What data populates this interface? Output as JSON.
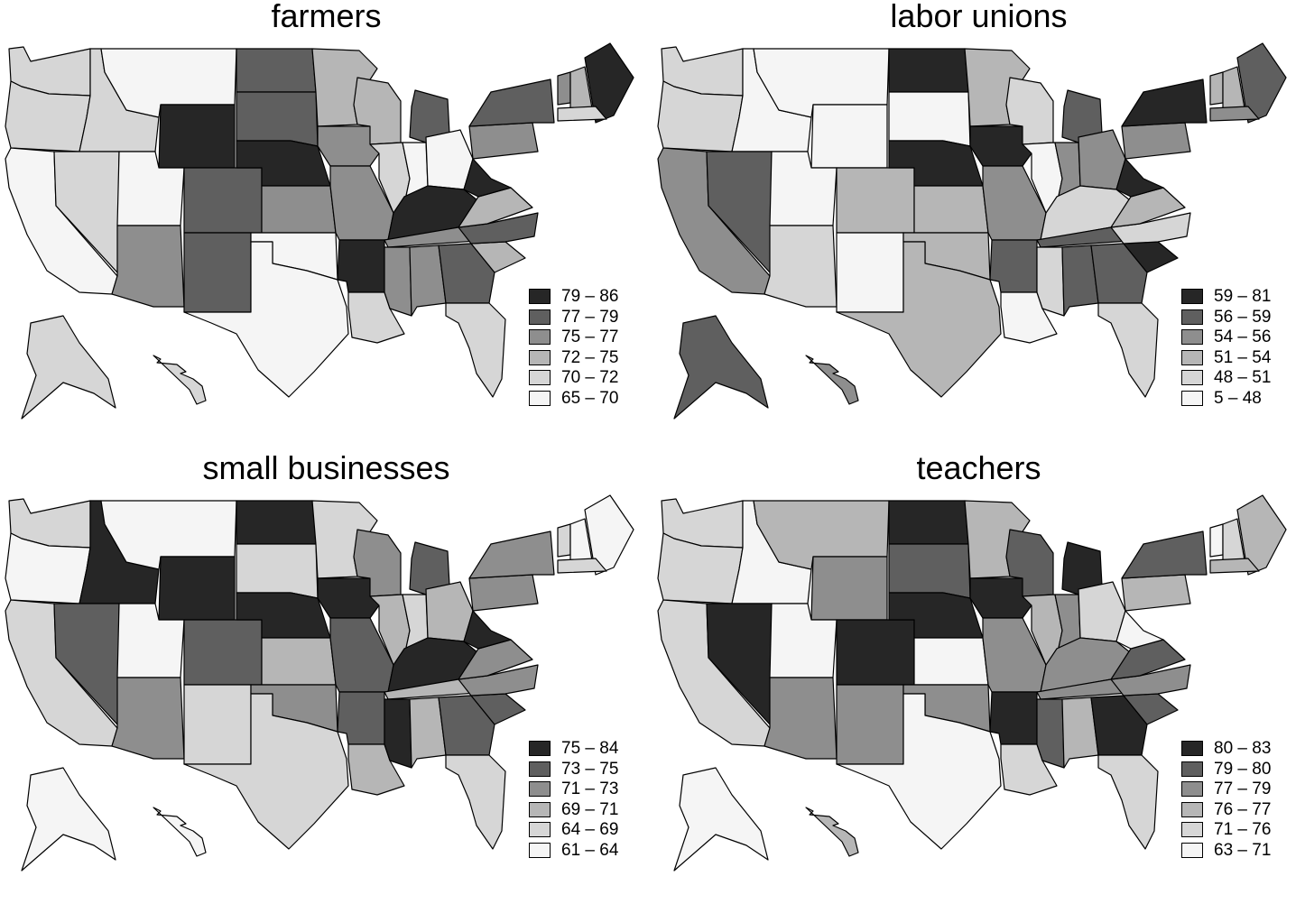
{
  "colors": {
    "class_fill": [
      "#262626",
      "#5f5f5f",
      "#8e8e8e",
      "#b6b6b6",
      "#d6d6d6",
      "#f5f5f5"
    ]
  },
  "panels": [
    {
      "title": "farmers",
      "legend": [
        "79 – 86",
        "77 – 79",
        "75 – 77",
        "72 – 75",
        "70 – 72",
        "65 – 70"
      ],
      "states": {
        "WA": 4,
        "OR": 4,
        "CA": 5,
        "ID": 4,
        "NV": 4,
        "MT": 5,
        "WY": 0,
        "UT": 5,
        "CO": 1,
        "AZ": 2,
        "NM": 1,
        "ND": 1,
        "SD": 1,
        "NE": 0,
        "KS": 2,
        "OK": 5,
        "TX": 5,
        "MN": 3,
        "IA": 2,
        "MO": 2,
        "AR": 0,
        "LA": 4,
        "WI": 3,
        "IL": 4,
        "MI": 1,
        "IN": 5,
        "OH": 5,
        "KY": 0,
        "TN": 2,
        "MS": 2,
        "AL": 2,
        "GA": 1,
        "FL": 4,
        "SC": 3,
        "NC": 1,
        "VA": 3,
        "WV": 0,
        "PA": 2,
        "NY": 1,
        "ME": 0,
        "VT": 2,
        "NH": 3,
        "MA": 4,
        "AK": 4,
        "HI": 4
      }
    },
    {
      "title": "labor unions",
      "legend": [
        "59 – 81",
        "56 – 59",
        "54 – 56",
        "51 – 54",
        "48 – 51",
        "5 – 48"
      ],
      "states": {
        "WA": 4,
        "OR": 4,
        "CA": 2,
        "ID": 5,
        "NV": 1,
        "MT": 5,
        "WY": 5,
        "UT": 5,
        "CO": 3,
        "AZ": 4,
        "NM": 5,
        "ND": 0,
        "SD": 5,
        "NE": 0,
        "KS": 3,
        "OK": 3,
        "TX": 3,
        "MN": 3,
        "IA": 0,
        "MO": 2,
        "AR": 1,
        "LA": 5,
        "WI": 4,
        "IL": 5,
        "MI": 1,
        "IN": 2,
        "OH": 2,
        "KY": 4,
        "TN": 1,
        "MS": 4,
        "AL": 1,
        "GA": 1,
        "FL": 4,
        "SC": 0,
        "NC": 4,
        "VA": 3,
        "WV": 0,
        "PA": 2,
        "NY": 0,
        "ME": 1,
        "VT": 3,
        "NH": 3,
        "MA": 2,
        "AK": 1,
        "HI": 2
      }
    },
    {
      "title": "small businesses",
      "legend": [
        "75 – 84",
        "73 – 75",
        "71 – 73",
        "69 – 71",
        "64 – 69",
        "61 – 64"
      ],
      "states": {
        "WA": 4,
        "OR": 5,
        "CA": 4,
        "ID": 0,
        "NV": 1,
        "MT": 5,
        "WY": 0,
        "UT": 5,
        "CO": 1,
        "AZ": 2,
        "NM": 4,
        "ND": 0,
        "SD": 4,
        "NE": 0,
        "KS": 3,
        "OK": 2,
        "TX": 4,
        "MN": 4,
        "IA": 0,
        "MO": 1,
        "AR": 1,
        "LA": 3,
        "WI": 2,
        "IL": 3,
        "MI": 1,
        "IN": 4,
        "OH": 3,
        "KY": 0,
        "TN": 3,
        "MS": 0,
        "AL": 3,
        "GA": 1,
        "FL": 4,
        "SC": 1,
        "NC": 2,
        "VA": 2,
        "WV": 0,
        "PA": 2,
        "NY": 2,
        "ME": 5,
        "VT": 4,
        "NH": 5,
        "MA": 4,
        "AK": 5,
        "HI": 5
      }
    },
    {
      "title": "teachers",
      "legend": [
        "80 – 83",
        "79 – 80",
        "77 – 79",
        "76 – 77",
        "71 – 76",
        "63 – 71"
      ],
      "states": {
        "WA": 4,
        "OR": 4,
        "CA": 4,
        "ID": 5,
        "NV": 0,
        "MT": 3,
        "WY": 2,
        "UT": 5,
        "CO": 0,
        "AZ": 2,
        "NM": 2,
        "ND": 0,
        "SD": 1,
        "NE": 0,
        "KS": 5,
        "OK": 2,
        "TX": 5,
        "MN": 3,
        "IA": 0,
        "MO": 2,
        "AR": 0,
        "LA": 4,
        "WI": 1,
        "IL": 3,
        "MI": 0,
        "IN": 2,
        "OH": 4,
        "KY": 2,
        "TN": 2,
        "MS": 1,
        "AL": 3,
        "GA": 0,
        "FL": 4,
        "SC": 1,
        "NC": 2,
        "VA": 1,
        "WV": 5,
        "PA": 3,
        "NY": 1,
        "ME": 3,
        "VT": 5,
        "NH": 4,
        "MA": 3,
        "AK": 5,
        "HI": 3
      }
    }
  ]
}
